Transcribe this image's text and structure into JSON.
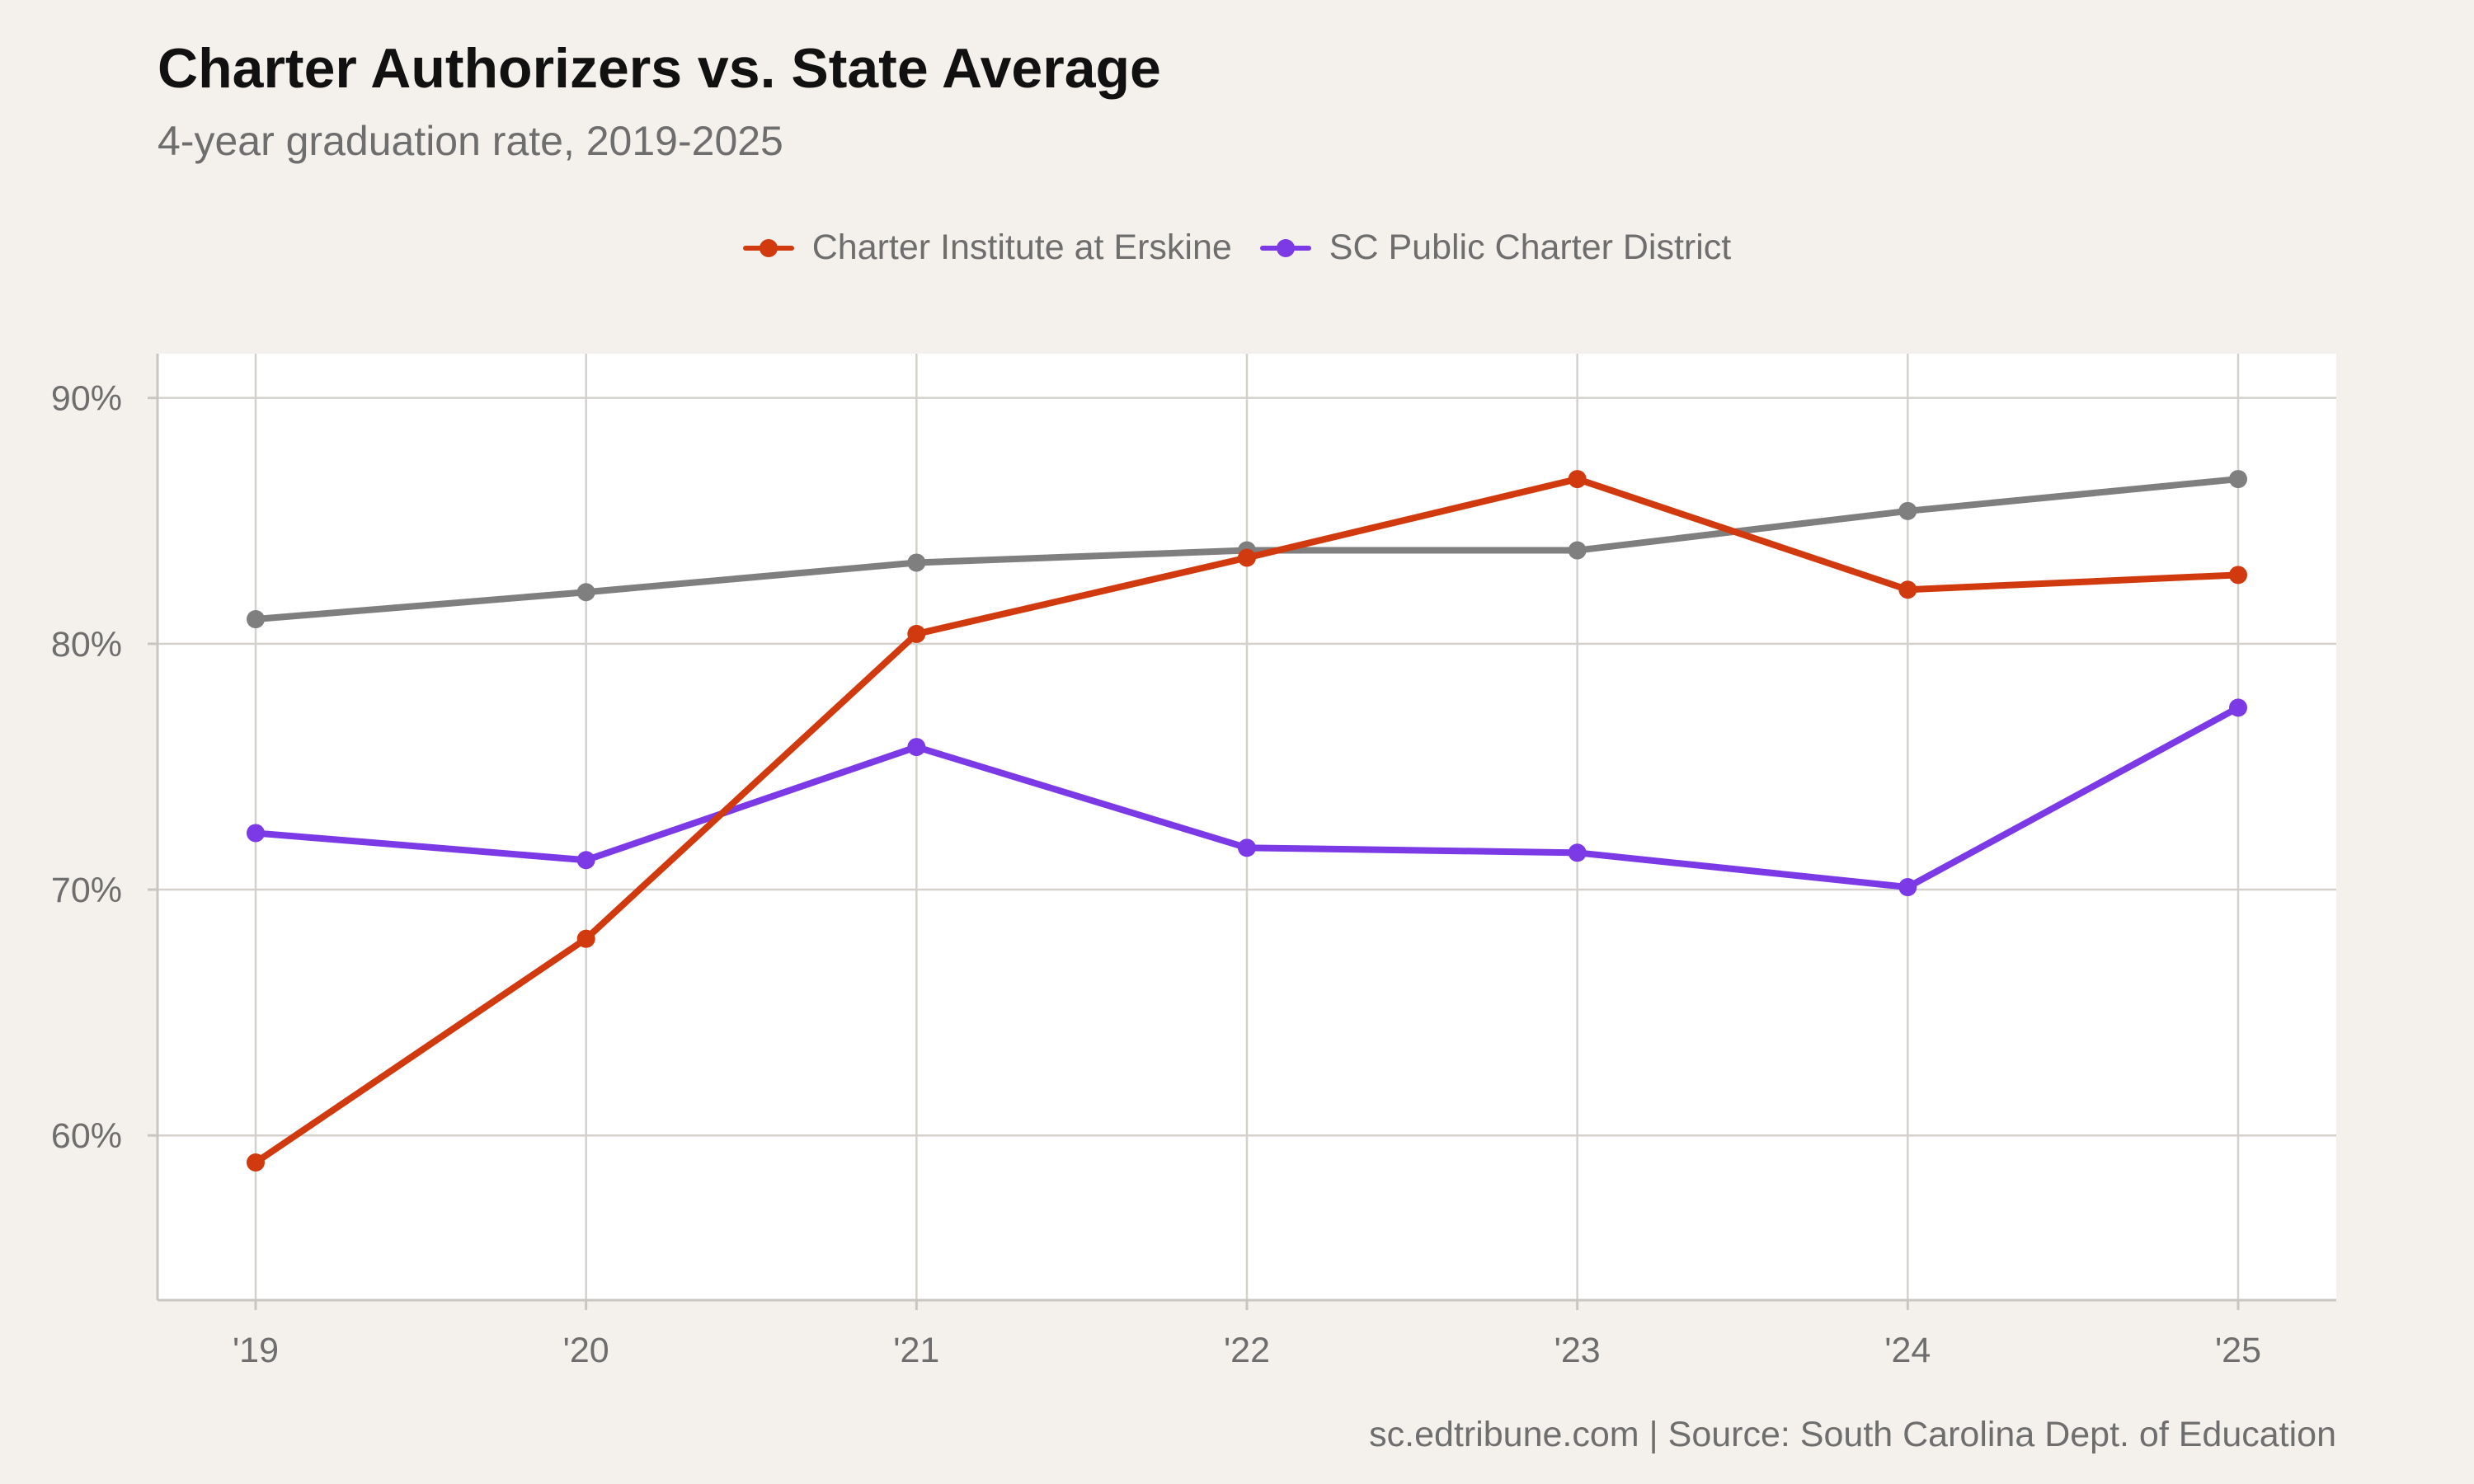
{
  "title": "Charter Authorizers vs. State Average",
  "subtitle": "4-year graduation rate, 2019-2025",
  "caption": "sc.edtribune.com | Source: South Carolina Dept. of Education",
  "legend": [
    {
      "label": "Charter Institute at Erskine",
      "color": "#d13a0e"
    },
    {
      "label": "SC Public Charter District",
      "color": "#7b3ae6"
    }
  ],
  "chart_data": {
    "type": "line",
    "x": [
      "'19",
      "'20",
      "'21",
      "'22",
      "'23",
      "'24",
      "'25"
    ],
    "y_ticks": [
      "60%",
      "70%",
      "80%",
      "90%"
    ],
    "ylim": [
      53.3,
      91.8
    ],
    "grid": true,
    "legend_position": "top",
    "series": [
      {
        "color": "#7f7f7f",
        "values": [
          81.0,
          82.1,
          83.3,
          83.8,
          83.8,
          85.4,
          86.7
        ]
      },
      {
        "name": "SC Public Charter District",
        "color": "#7b3ae6",
        "values": [
          72.3,
          71.2,
          75.8,
          71.7,
          71.5,
          70.1,
          77.4
        ]
      },
      {
        "name": "Charter Institute at Erskine",
        "color": "#d13a0e",
        "values": [
          58.9,
          68.0,
          80.4,
          83.5,
          86.7,
          82.2,
          82.8
        ]
      }
    ]
  }
}
